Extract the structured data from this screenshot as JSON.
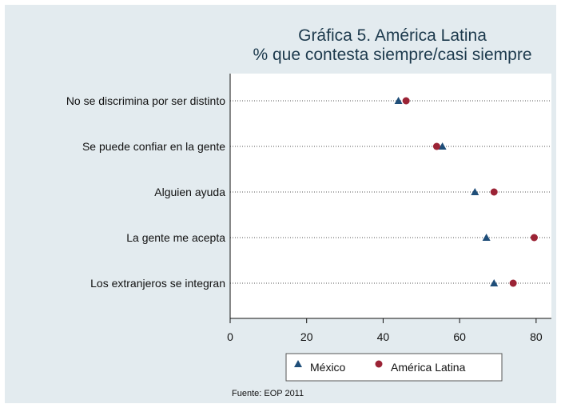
{
  "chart_data": {
    "type": "scatter",
    "title": "Gráfica 5. América Latina",
    "subtitle": "% que contesta siempre/casi siempre",
    "categories": [
      "No se discrimina por ser distinto",
      "Se puede confiar en la gente",
      "Alguien ayuda",
      "La gente me acepta",
      "Los extranjeros se integran"
    ],
    "series": [
      {
        "name": "México",
        "marker": "triangle",
        "color": "#1f4e79",
        "values": [
          44,
          55.5,
          64,
          67,
          69
        ]
      },
      {
        "name": "América Latina",
        "marker": "circle",
        "color": "#9b2335",
        "values": [
          46,
          54,
          69,
          79.5,
          74
        ]
      }
    ],
    "xlim": [
      0,
      84
    ],
    "xticks": [
      "0",
      "20",
      "40",
      "60",
      "80"
    ],
    "xtick_values": [
      0,
      20,
      40,
      60,
      80
    ],
    "grid": "dotted-horizontal",
    "legend": "bottom",
    "source": "Fuente: EOP 2011",
    "background": "#e3ebef",
    "plot_background": "#ffffff"
  }
}
